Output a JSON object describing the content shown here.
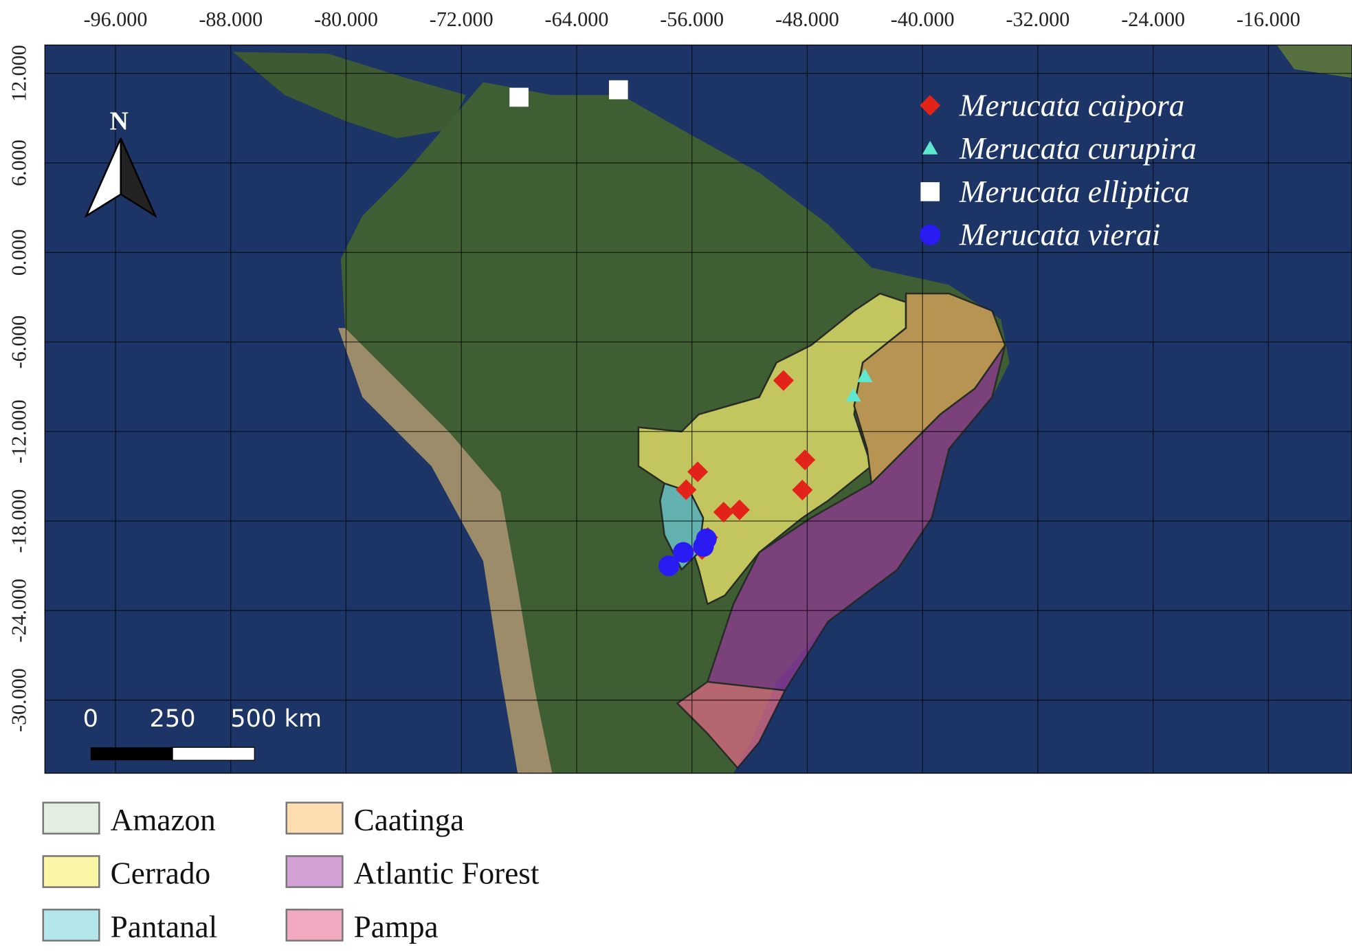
{
  "north": "N",
  "scale_bar": {
    "labels": [
      "0",
      "250",
      "500 km"
    ]
  },
  "chart_data": {
    "type": "map",
    "xlim": [
      -100.9,
      -10.2
    ],
    "ylim": [
      -34.9,
      13.9
    ],
    "grid": true,
    "xticks": [
      {
        "value": -96,
        "label": "-96.000"
      },
      {
        "value": -88,
        "label": "-88.000"
      },
      {
        "value": -80,
        "label": "-80.000"
      },
      {
        "value": -72,
        "label": "-72.000"
      },
      {
        "value": -64,
        "label": "-64.000"
      },
      {
        "value": -56,
        "label": "-56.000"
      },
      {
        "value": -48,
        "label": "-48.000"
      },
      {
        "value": -40,
        "label": "-40.000"
      },
      {
        "value": -32,
        "label": "-32.000"
      },
      {
        "value": -24,
        "label": "-24.000"
      },
      {
        "value": -16,
        "label": "-16.000"
      }
    ],
    "yticks": [
      {
        "value": 12,
        "label": "12.000"
      },
      {
        "value": 6,
        "label": "6.000"
      },
      {
        "value": 0,
        "label": "0.000"
      },
      {
        "value": -6,
        "label": "-6.000"
      },
      {
        "value": -12,
        "label": "-12.000"
      },
      {
        "value": -18,
        "label": "-18.000"
      },
      {
        "value": -24,
        "label": "-24.000"
      },
      {
        "value": -30,
        "label": "-30.000"
      }
    ],
    "series": [
      {
        "name": "Merucata caipora",
        "color": "#e2231a",
        "marker": "diamond",
        "x": [
          -49.65,
          -48.16,
          -48.34,
          -55.6,
          -56.4,
          -53.8,
          -52.7,
          -54.9,
          -55.3
        ],
        "y": [
          -8.58,
          -13.9,
          -15.92,
          -14.7,
          -15.9,
          -17.4,
          -17.25,
          -19.1,
          -19.9
        ]
      },
      {
        "name": "Merucata curupira",
        "color": "#5fe8cf",
        "marker": "triangle",
        "x": [
          -44.0,
          -44.8
        ],
        "y": [
          -8.3,
          -9.6
        ]
      },
      {
        "name": "Merucata elliptica",
        "color": "#ffffff",
        "marker": "square",
        "x": [
          -68.0,
          -61.1
        ],
        "y": [
          10.4,
          10.9
        ]
      },
      {
        "name": "Merucata vierai",
        "color": "#2a1bf2",
        "marker": "circle",
        "x": [
          -57.6,
          -56.6,
          -55.2,
          -55.0
        ],
        "y": [
          -21.0,
          -20.1,
          -19.7,
          -19.2
        ]
      }
    ]
  },
  "biome_legend": [
    {
      "label": "Amazon",
      "color": "#e2efe0"
    },
    {
      "label": "Cerrado",
      "color": "#fbf5a6"
    },
    {
      "label": "Pantanal",
      "color": "#b2e6ea"
    },
    {
      "label": "Caatinga",
      "color": "#fddcb0"
    },
    {
      "label": "Atlantic Forest",
      "color": "#d3a0d6"
    },
    {
      "label": "Pampa",
      "color": "#f1a9c0"
    }
  ]
}
